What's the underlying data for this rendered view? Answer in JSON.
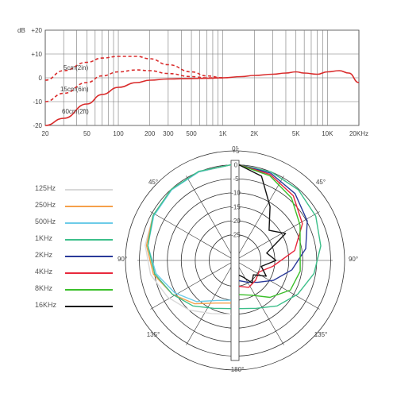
{
  "chart_data": [
    {
      "type": "line",
      "title": "",
      "xlabel": "",
      "ylabel": "dB",
      "x_scale": "log",
      "xlim": [
        20,
        20000
      ],
      "ylim": [
        -20,
        20
      ],
      "grid": true,
      "x_ticks": [
        {
          "value": 20,
          "label": "20"
        },
        {
          "value": 50,
          "label": "50"
        },
        {
          "value": 100,
          "label": "100"
        },
        {
          "value": 200,
          "label": "200"
        },
        {
          "value": 300,
          "label": "300"
        },
        {
          "value": 500,
          "label": "500"
        },
        {
          "value": 1000,
          "label": "1K"
        },
        {
          "value": 2000,
          "label": "2K"
        },
        {
          "value": 5000,
          "label": "5K"
        },
        {
          "value": 10000,
          "label": "10K"
        },
        {
          "value": 20000,
          "label": "20KHz"
        }
      ],
      "y_ticks": [
        {
          "value": 20,
          "label": "+20"
        },
        {
          "value": 10,
          "label": "+10"
        },
        {
          "value": 0,
          "label": "0"
        },
        {
          "value": -10,
          "label": "-10"
        },
        {
          "value": -20,
          "label": "-20"
        }
      ],
      "series": [
        {
          "name": "5cm(2in)",
          "color": "#d92b2b",
          "dash": true,
          "x": [
            20,
            30,
            50,
            70,
            100,
            150,
            200,
            300,
            500,
            700,
            1000
          ],
          "y": [
            -1,
            3,
            6.5,
            8.3,
            9,
            9,
            8,
            5.5,
            2.5,
            0.8,
            0
          ]
        },
        {
          "name": "15cm(6in)",
          "color": "#d92b2b",
          "dash": true,
          "x": [
            20,
            30,
            50,
            70,
            100,
            150,
            200,
            300,
            500,
            700,
            1000
          ],
          "y": [
            -10,
            -6.5,
            -2,
            0.8,
            2.5,
            3.3,
            3,
            1.8,
            0.5,
            0,
            0
          ]
        },
        {
          "name": "60cm(2ft)",
          "color": "#d92b2b",
          "dash": false,
          "x": [
            20,
            30,
            50,
            70,
            100,
            150,
            200,
            300,
            500,
            700,
            1000,
            1500,
            2000,
            3000,
            4000,
            5000,
            6000,
            8000,
            10000,
            13000,
            16000,
            20000
          ],
          "y": [
            -20,
            -17,
            -11,
            -7,
            -4,
            -2,
            -1,
            -0.5,
            -0.3,
            -0.2,
            0,
            0.5,
            1,
            1.5,
            2,
            2.5,
            2,
            1.5,
            2.5,
            3,
            2,
            -2
          ]
        }
      ],
      "curve_labels": [
        "5cm(2in)",
        "15cm(6in)",
        "60cm(2ft)"
      ]
    },
    {
      "type": "polar",
      "title": "",
      "r_range": [
        -30,
        5
      ],
      "r_ticks": [
        "+5",
        "0",
        "-5",
        "-10",
        "-15",
        "-20",
        "-25"
      ],
      "angle_labels": [
        "0°",
        "45°",
        "90°",
        "135°",
        "180°",
        "135°",
        "90°",
        "45°"
      ],
      "legend": {
        "position": "left",
        "entries": [
          {
            "label": "125Hz",
            "color": "#d9d9d9"
          },
          {
            "label": "250Hz",
            "color": "#f5a04a"
          },
          {
            "label": "500Hz",
            "color": "#6ccbe8"
          },
          {
            "label": "1KHz",
            "color": "#3cbf8a"
          },
          {
            "label": "2KHz",
            "color": "#2a3a9a"
          },
          {
            "label": "4KHz",
            "color": "#e8283c"
          },
          {
            "label": "8KHz",
            "color": "#3bbf2a"
          },
          {
            "label": "16KHz",
            "color": "#111111"
          }
        ]
      },
      "series": [
        {
          "name": "125Hz",
          "side": "left",
          "color": "#d9d9d9",
          "angles": [
            0,
            20,
            40,
            60,
            80,
            100,
            120,
            140,
            160,
            180
          ],
          "values": [
            0,
            -0.5,
            -1,
            -2,
            -3,
            -5,
            -8,
            -11,
            -14,
            -15
          ]
        },
        {
          "name": "250Hz",
          "side": "left",
          "color": "#f5a04a",
          "angles": [
            0,
            20,
            40,
            60,
            80,
            100,
            120,
            140,
            160,
            180
          ],
          "values": [
            0,
            -0.5,
            -1,
            -2,
            -3.5,
            -6,
            -10,
            -14,
            -18,
            -19
          ]
        },
        {
          "name": "500Hz",
          "side": "left",
          "color": "#6ccbe8",
          "angles": [
            0,
            20,
            40,
            60,
            80,
            100,
            120,
            140,
            160,
            180
          ],
          "values": [
            0,
            -0.5,
            -1.2,
            -2.3,
            -4,
            -7,
            -11,
            -15,
            -19,
            -20
          ]
        },
        {
          "name": "1KHz",
          "side": "left",
          "color": "#3cbf8a",
          "angles": [
            0,
            20,
            40,
            60,
            80,
            100,
            120,
            140,
            160,
            180
          ],
          "values": [
            0,
            -0.3,
            -1,
            -2,
            -4,
            -6.5,
            -10,
            -13,
            -16,
            -17
          ]
        },
        {
          "name": "1KHz",
          "side": "right",
          "color": "#3cbf8a",
          "angles": [
            0,
            20,
            40,
            60,
            80,
            100,
            120,
            140,
            160,
            180
          ],
          "values": [
            0,
            -0.5,
            -1.2,
            -2.5,
            -4.5,
            -7,
            -10,
            -13,
            -16,
            -17
          ]
        },
        {
          "name": "2KHz",
          "side": "right",
          "color": "#2a3a9a",
          "angles": [
            0,
            20,
            40,
            60,
            80,
            100,
            120,
            140,
            160,
            180
          ],
          "values": [
            0,
            -1,
            -3,
            -6,
            -10,
            -15,
            -20,
            -24,
            -26,
            -27
          ]
        },
        {
          "name": "4KHz",
          "side": "right",
          "color": "#e8283c",
          "angles": [
            0,
            20,
            40,
            60,
            80,
            100,
            120,
            140,
            160,
            180
          ],
          "values": [
            0,
            -1.5,
            -4,
            -8,
            -14,
            -22,
            -26,
            -25,
            -24,
            -25
          ]
        },
        {
          "name": "8KHz",
          "side": "right",
          "color": "#3bbf2a",
          "angles": [
            0,
            20,
            40,
            60,
            80,
            100,
            120,
            140,
            160,
            180
          ],
          "values": [
            0,
            -2,
            -5,
            -9,
            -12,
            -12,
            -13,
            -17,
            -21,
            -22
          ]
        },
        {
          "name": "16KHz",
          "side": "right",
          "color": "#111111",
          "angles": [
            0,
            15,
            30,
            45,
            60,
            75,
            90,
            105,
            120,
            135,
            150,
            165,
            180
          ],
          "values": [
            0,
            -3,
            -12,
            -19,
            -15,
            -24,
            -21,
            -26,
            -23,
            -27,
            -25,
            -28,
            -29
          ]
        }
      ]
    }
  ]
}
